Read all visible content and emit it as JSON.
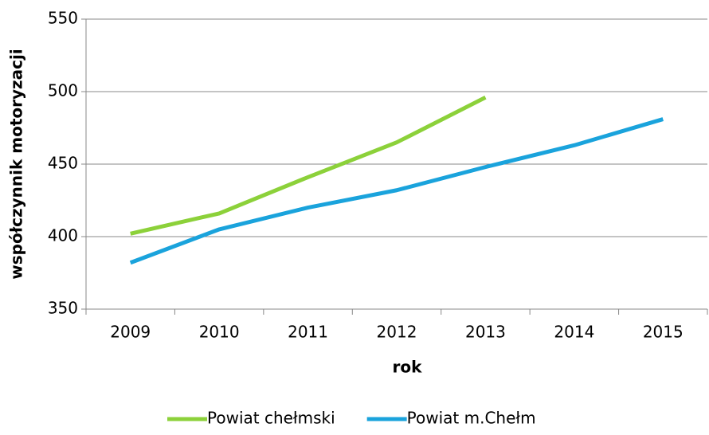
{
  "chart_data": {
    "type": "line",
    "x_label": "rok",
    "y_label": "współczynnik motoryzacji",
    "categories": [
      "2009",
      "2010",
      "2011",
      "2012",
      "2013",
      "2014",
      "2015"
    ],
    "series": [
      {
        "name": "Powiat chełmski",
        "color": "#8cd13a",
        "values": [
          402,
          416,
          441,
          465,
          496,
          null,
          null
        ]
      },
      {
        "name": "Powiat m.Chełm",
        "color": "#1aa3dc",
        "values": [
          382,
          405,
          420,
          432,
          448,
          463,
          481
        ]
      }
    ],
    "ylim": [
      350,
      550
    ],
    "yticks": [
      350,
      400,
      450,
      500,
      550
    ],
    "grid": true,
    "legend": "bottom"
  }
}
